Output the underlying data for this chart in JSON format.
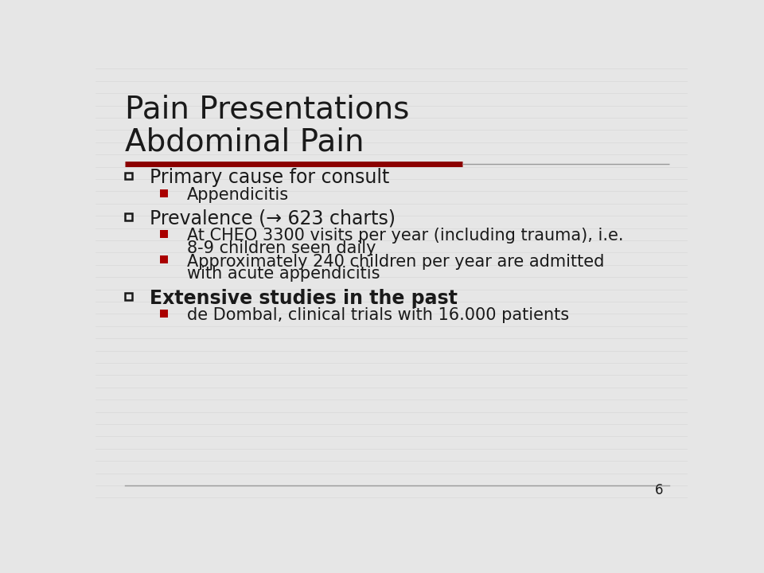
{
  "title_line1": "Pain Presentations",
  "title_line2": "Abdominal Pain",
  "background_color": "#e6e6e6",
  "title_color": "#1a1a1a",
  "text_color": "#1a1a1a",
  "accent_red": "#8b0000",
  "bullet_red": "#aa0000",
  "slide_number": "6",
  "title_fontsize": 28,
  "bullet1_fontsize": 17,
  "bullet2_fontsize": 15,
  "slide_num_fontsize": 12,
  "stripe_color": "#d8d8d8",
  "line_color": "#999999",
  "items": [
    {
      "level": 1,
      "text": "Primary cause for consult",
      "bold": false
    },
    {
      "level": 2,
      "text": "Appendicitis",
      "bold": false
    },
    {
      "level": 1,
      "text": "Prevalence (→ 623 charts)",
      "bold": false
    },
    {
      "level": 2,
      "text": "At CHEO 3300 visits per year (including trauma), i.e.\n8-9 children seen daily",
      "bold": false
    },
    {
      "level": 2,
      "text": "Approximately 240 children per year are admitted\nwith acute appendicitis",
      "bold": false
    },
    {
      "level": 1,
      "text": "Extensive studies in the past",
      "bold": true
    },
    {
      "level": 2,
      "text": "de Dombal, clinical trials with 16.000 patients",
      "bold": false
    }
  ]
}
